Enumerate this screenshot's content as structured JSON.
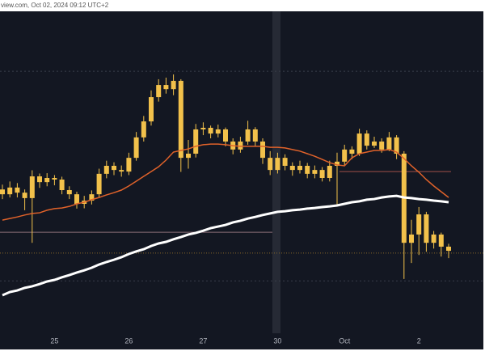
{
  "chart_data": {
    "type": "candlestick",
    "header": "view.com, Oct 02, 2024 09:12 UTC+2",
    "categories": [
      null,
      null,
      null,
      null,
      null,
      null,
      null,
      "25",
      null,
      null,
      null,
      null,
      null,
      null,
      null,
      null,
      null,
      "26",
      null,
      null,
      null,
      null,
      null,
      null,
      null,
      null,
      null,
      "27",
      null,
      null,
      null,
      null,
      null,
      null,
      null,
      null,
      null,
      "30",
      null,
      null,
      null,
      null,
      null,
      null,
      null,
      null,
      "Oct",
      null,
      null,
      null,
      null,
      null,
      null,
      null,
      null,
      null,
      "2",
      null,
      null,
      null,
      null
    ],
    "open": [
      44.5,
      43.0,
      45.1,
      43.5,
      41.8,
      48.6,
      46.8,
      48.1,
      47.6,
      44.3,
      43.0,
      40.0,
      41.0,
      43.0,
      49.4,
      51.9,
      50.6,
      50.1,
      54.4,
      60.8,
      65.8,
      73.4,
      77.2,
      75.9,
      78.5,
      54.4,
      55.7,
      63.3,
      63.8,
      62.0,
      63.3,
      59.5,
      57.0,
      59.5,
      63.3,
      59.5,
      54.4,
      50.6,
      54.4,
      51.9,
      50.6,
      51.9,
      49.4,
      50.6,
      48.1,
      51.9,
      53.2,
      57.0,
      55.7,
      62.0,
      58.2,
      59.5,
      57.0,
      60.8,
      55.7,
      27.8,
      30.4,
      36.7,
      27.8,
      30.4,
      26.6
    ],
    "high": [
      46.0,
      47.0,
      46.5,
      44.5,
      50.5,
      49.5,
      49.6,
      49.0,
      48.5,
      45.5,
      43.8,
      42.5,
      44.2,
      51.0,
      53.5,
      53.0,
      52.0,
      56.0,
      62.5,
      67.5,
      75.5,
      79.0,
      79.5,
      80.5,
      79.0,
      60.0,
      65.0,
      65.5,
      64.5,
      64.8,
      63.9,
      60.5,
      61.0,
      66.0,
      64.0,
      60.5,
      56.5,
      56.0,
      55.5,
      53.0,
      53.5,
      52.8,
      52.0,
      51.5,
      53.5,
      56.0,
      58.5,
      58.0,
      63.5,
      63.0,
      61.0,
      60.5,
      62.5,
      61.5,
      56.5,
      35.0,
      39.0,
      37.5,
      31.5,
      31.0,
      27.5
    ],
    "low": [
      41.5,
      42.0,
      42.0,
      38.0,
      27.8,
      45.0,
      45.5,
      45.8,
      43.0,
      41.5,
      38.5,
      38.6,
      39.8,
      42.0,
      48.0,
      49.0,
      48.5,
      49.0,
      53.5,
      59.5,
      64.5,
      72.0,
      74.5,
      74.0,
      50.0,
      51.0,
      54.5,
      61.5,
      60.5,
      60.8,
      58.0,
      55.5,
      56.0,
      58.5,
      58.0,
      52.5,
      49.0,
      49.5,
      50.5,
      48.8,
      49.5,
      48.0,
      48.0,
      47.0,
      47.0,
      39.2,
      52.0,
      54.0,
      55.0,
      57.0,
      57.5,
      56.0,
      56.5,
      54.0,
      16.5,
      21.5,
      24.0,
      25.0,
      26.0,
      23.5,
      23.0
    ],
    "close": [
      43.0,
      45.1,
      43.5,
      41.8,
      48.6,
      46.8,
      48.1,
      47.6,
      44.3,
      43.0,
      40.0,
      41.0,
      43.0,
      49.4,
      51.9,
      50.6,
      50.1,
      54.4,
      60.8,
      65.8,
      73.4,
      77.2,
      75.9,
      78.5,
      54.4,
      55.7,
      63.3,
      63.8,
      62.0,
      63.3,
      59.5,
      57.0,
      59.5,
      63.3,
      59.5,
      54.4,
      50.6,
      54.4,
      51.9,
      50.6,
      51.9,
      49.4,
      50.6,
      48.1,
      51.9,
      53.2,
      57.0,
      55.7,
      62.0,
      58.2,
      59.5,
      57.0,
      60.8,
      55.7,
      27.8,
      30.4,
      36.7,
      27.8,
      30.4,
      26.6,
      25.3
    ],
    "color": "#f2c14b",
    "series": [
      {
        "color": "#e0622a",
        "values": [
          34.9,
          35.4,
          35.9,
          36.5,
          37.0,
          37.2,
          38.0,
          38.5,
          38.7,
          39.2,
          40.0,
          40.5,
          41.3,
          42.0,
          42.8,
          43.5,
          44.3,
          45.6,
          47.1,
          48.6,
          50.1,
          51.6,
          53.7,
          56.2,
          56.7,
          57.2,
          58.0,
          58.5,
          58.7,
          58.7,
          58.5,
          58.2,
          58.0,
          58.0,
          58.0,
          58.0,
          57.7,
          57.7,
          57.5,
          57.0,
          56.5,
          55.7,
          54.9,
          53.9,
          52.9,
          52.2,
          51.9,
          54.4,
          55.7,
          56.2,
          56.7,
          56.7,
          57.0,
          56.2,
          54.2,
          51.9,
          49.9,
          47.6,
          45.6,
          43.8,
          42.0
        ]
      },
      {
        "color": "#ffffff",
        "values": [
          11.4,
          12.4,
          12.9,
          13.7,
          14.2,
          14.9,
          15.7,
          16.2,
          17.0,
          17.7,
          18.5,
          19.2,
          20.0,
          21.0,
          21.8,
          22.5,
          23.3,
          24.3,
          25.1,
          25.8,
          26.8,
          27.6,
          28.1,
          28.9,
          29.6,
          30.4,
          30.9,
          31.6,
          32.4,
          32.9,
          33.4,
          34.2,
          34.7,
          35.4,
          35.9,
          36.5,
          37.0,
          37.5,
          37.7,
          38.0,
          38.2,
          38.5,
          38.7,
          39.0,
          39.2,
          39.5,
          40.0,
          40.5,
          40.8,
          41.3,
          41.5,
          42.0,
          42.3,
          42.5,
          42.0,
          41.8,
          41.5,
          41.3,
          41.0,
          40.8,
          40.5
        ]
      }
    ],
    "levels": [
      {
        "value": 81.5,
        "color": "#3a3f4b"
      },
      {
        "value": 31.1,
        "color": "#8a6f7a"
      },
      {
        "value": 50.1,
        "color": "#a0504a"
      },
      {
        "value": 24.6,
        "color": "#8a6a2a"
      },
      {
        "value": 15.9,
        "color": "#3a3f4b"
      }
    ],
    "ylim": [
      0,
      100
    ]
  }
}
